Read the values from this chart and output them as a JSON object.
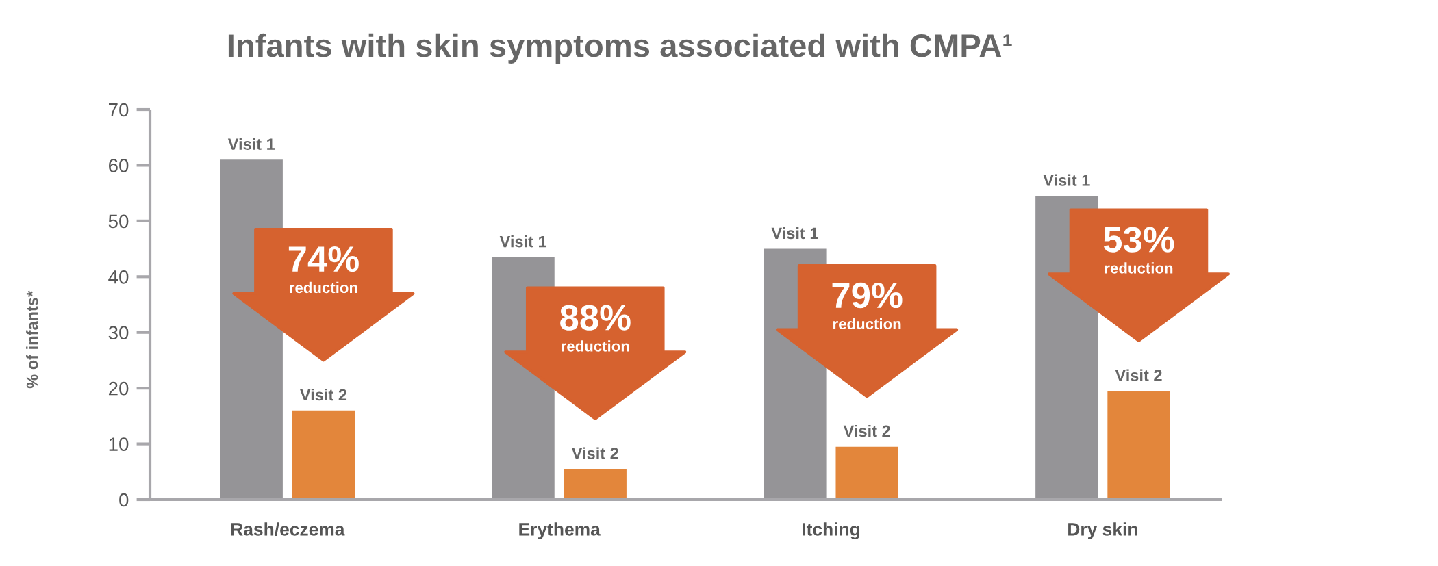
{
  "chart_data": {
    "type": "bar",
    "title": "Infants with skin symptoms associated with CMPA¹",
    "ylabel": "% of infants*",
    "categories": [
      "Rash/eczema",
      "Erythema",
      "Itching",
      "Dry skin"
    ],
    "series": [
      {
        "name": "Visit 1",
        "color": "#959497",
        "values": [
          61,
          43.5,
          45,
          54.5
        ]
      },
      {
        "name": "Visit 2",
        "color": "#e3863b",
        "values": [
          16,
          5.5,
          9.5,
          19.5
        ]
      }
    ],
    "ylim": [
      0,
      70
    ],
    "yticks": [
      0,
      10,
      20,
      30,
      40,
      50,
      60,
      70
    ],
    "grid": false,
    "legend": false,
    "annotations": [
      "74%\nreduction",
      "88%\nreduction",
      "79%\nreduction",
      "53%\nreduction"
    ]
  }
}
